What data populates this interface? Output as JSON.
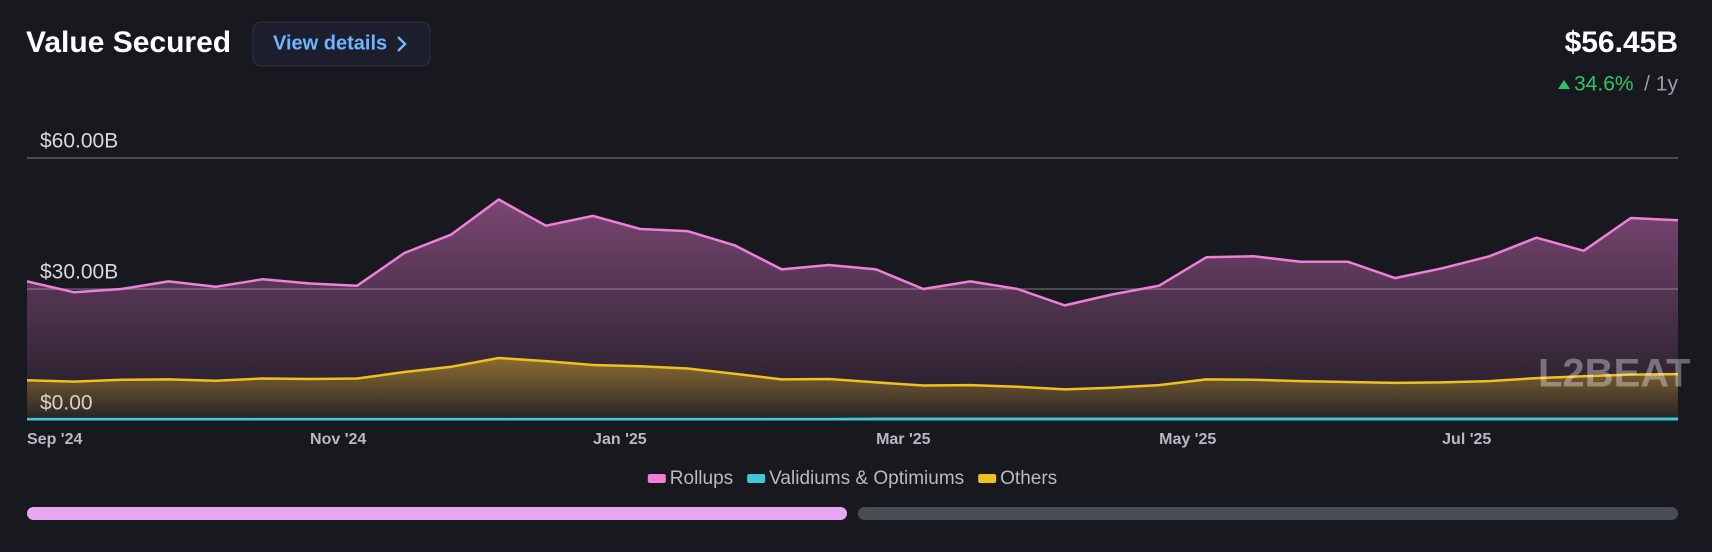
{
  "header": {
    "title": "Value Secured",
    "button": "View details",
    "value": "$56.45B",
    "change": "34.6%",
    "period": "/ 1y"
  },
  "watermark": "L2BEAT",
  "chart_data": {
    "type": "area",
    "categories": [
      "Sep '24",
      null,
      null,
      null,
      null,
      null,
      "Nov '24",
      null,
      null,
      null,
      null,
      null,
      "Jan '25",
      null,
      null,
      null,
      null,
      null,
      "Mar '25",
      null,
      null,
      null,
      null,
      null,
      "May '25",
      null,
      null,
      null,
      null,
      null,
      "Jul '25",
      null,
      null,
      null,
      null,
      null
    ],
    "series": [
      {
        "name": "Rollups",
        "color": "#f07fd8",
        "values": [
          31.75,
          29.25,
          30,
          31.75,
          30.5,
          32.25,
          31.25,
          30.75,
          38.25,
          42.5,
          50.5,
          44.5,
          46.75,
          43.75,
          43.25,
          40,
          34.5,
          35.5,
          34.5,
          30,
          31.75,
          30,
          26.25,
          28.75,
          30.75,
          37.25,
          37.5,
          36.25,
          36.25,
          32.5,
          34.75,
          37.5,
          41.75,
          38.75,
          46.25,
          45.75
        ]
      },
      {
        "name": "Validiums & Optimiums",
        "color": "#3ec8d8",
        "values": [
          0.2,
          0.2,
          0.2,
          0.2,
          0.2,
          0.2,
          0.2,
          0.2,
          0.2,
          0.2,
          0.2,
          0.2,
          0.2,
          0.2,
          0.2,
          0.2,
          0.2,
          0.2,
          0.3,
          0.3,
          0.3,
          0.3,
          0.3,
          0.3,
          0.3,
          0.3,
          0.3,
          0.3,
          0.3,
          0.3,
          0.3,
          0.3,
          0.3,
          0.3,
          0.3,
          0.3
        ]
      },
      {
        "name": "Others",
        "color": "#f0c020",
        "values": [
          9.1,
          8.8,
          9.2,
          9.3,
          9.0,
          9.5,
          9.4,
          9.5,
          11,
          12.2,
          14.2,
          13.5,
          12.6,
          12.3,
          11.8,
          10.6,
          9.3,
          9.4,
          8.6,
          7.9,
          8.0,
          7.6,
          7.0,
          7.4,
          8.0,
          9.3,
          9.2,
          8.9,
          8.7,
          8.5,
          8.6,
          8.9,
          9.6,
          10.0,
          10.4,
          10.5
        ]
      }
    ],
    "ylim": [
      0,
      60
    ],
    "yticks": [
      {
        "value": 0,
        "label": "$0.00"
      },
      {
        "value": 30,
        "label": "$30.00B"
      },
      {
        "value": 60,
        "label": "$60.00B"
      }
    ],
    "grid": true,
    "legend": "bottom"
  }
}
